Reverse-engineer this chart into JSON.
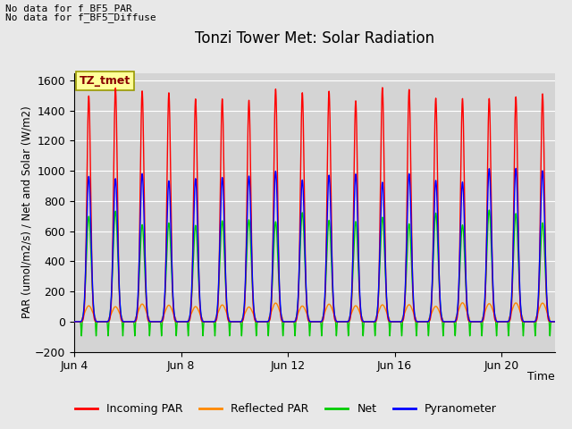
{
  "title": "Tonzi Tower Met: Solar Radiation",
  "xlabel": "Time",
  "ylabel": "PAR (umol/m2/s) / Net and Solar (W/m2)",
  "ylim": [
    -200,
    1650
  ],
  "yticks": [
    -200,
    0,
    200,
    400,
    600,
    800,
    1000,
    1200,
    1400,
    1600
  ],
  "no_data_lines": [
    "No data for f_BF5_PAR",
    "No data for f_BF5_Diffuse"
  ],
  "tz_label": "TZ_tmet",
  "tz_label_bg": "#FFFF99",
  "tz_label_fg": "#880000",
  "legend_entries": [
    "Incoming PAR",
    "Reflected PAR",
    "Net",
    "Pyranometer"
  ],
  "legend_colors": [
    "#ff0000",
    "#ff8800",
    "#00cc00",
    "#0000ff"
  ],
  "n_days": 18,
  "incoming_par_peak": 1540,
  "reflected_par_peak": 120,
  "net_peak": 720,
  "net_trough": -100,
  "pyranometer_peak": 1000,
  "bg_color": "#e8e8e8",
  "plot_bg_color": "#d4d4d4",
  "grid_color": "#ffffff"
}
